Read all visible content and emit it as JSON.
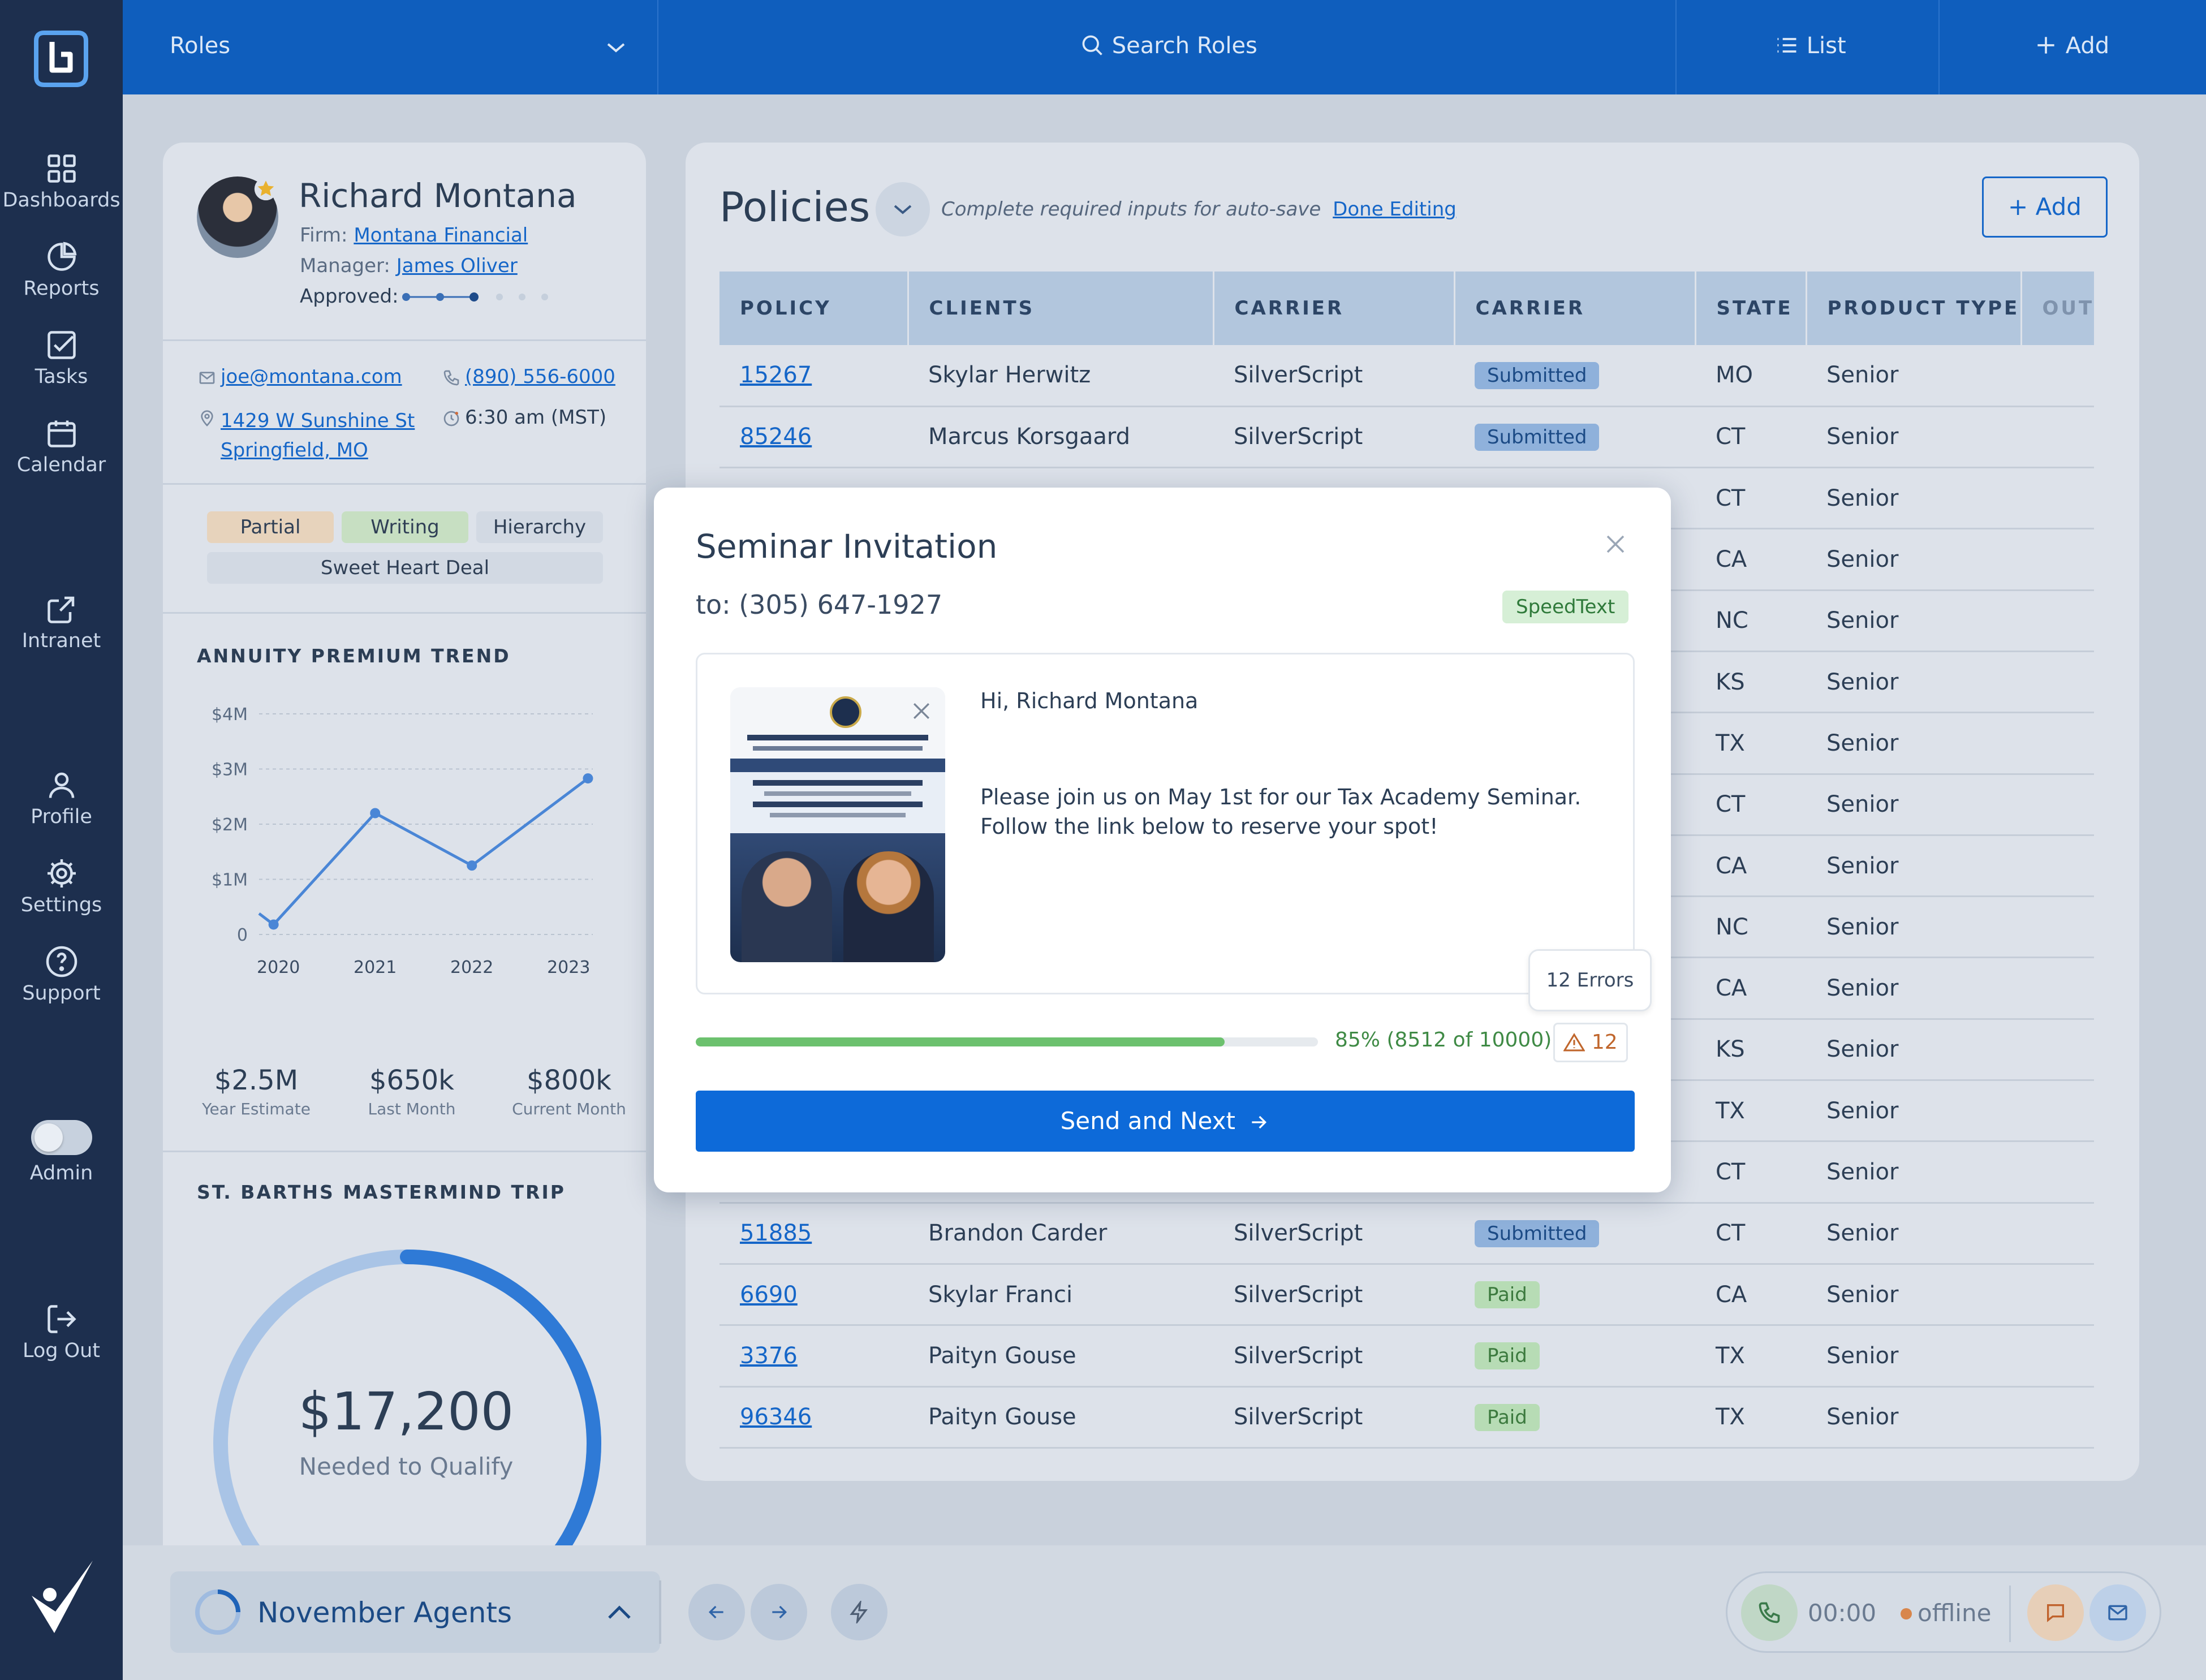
{
  "sidebar": {
    "items": [
      {
        "label": "Dashboards",
        "icon": "grid-icon"
      },
      {
        "label": "Reports",
        "icon": "pie-chart-icon"
      },
      {
        "label": "Tasks",
        "icon": "checkbox-icon"
      },
      {
        "label": "Calendar",
        "icon": "calendar-icon"
      },
      {
        "label": "Intranet",
        "icon": "external-link-icon"
      },
      {
        "label": "Profile",
        "icon": "user-icon"
      },
      {
        "label": "Settings",
        "icon": "gear-icon"
      },
      {
        "label": "Support",
        "icon": "help-circle-icon"
      },
      {
        "label": "Admin",
        "icon": "toggle-icon"
      },
      {
        "label": "Log Out",
        "icon": "logout-icon"
      }
    ]
  },
  "topbar": {
    "roles_label": "Roles",
    "search_label": "Search Roles",
    "list_label": "List",
    "add_label": "Add"
  },
  "profile": {
    "name": "Richard Montana",
    "firm_label": "Firm:",
    "firm": "Montana Financial",
    "manager_label": "Manager:",
    "manager": "James Oliver",
    "approved_label": "Approved:",
    "email": "joe@montana.com",
    "phone": "(890) 556-6000",
    "address_line1": "1429 W Sunshine St",
    "address_line2": "Springfield, MO",
    "local_time": "6:30 am (MST)",
    "tags": [
      "Partial",
      "Writing",
      "Hierarchy",
      "Sweet Heart Deal"
    ]
  },
  "annuity": {
    "title": "ANNUITY PREMIUM TREND",
    "stats": [
      {
        "value": "$2.5M",
        "label": "Year Estimate"
      },
      {
        "value": "$650k",
        "label": "Last Month"
      },
      {
        "value": "$800k",
        "label": "Current Month"
      }
    ]
  },
  "chart_data": {
    "type": "line",
    "x_ticks": [
      "2020",
      "2021",
      "2022",
      "2023"
    ],
    "y_ticks": [
      "0",
      "$1M",
      "$2M",
      "$3M",
      "$4M"
    ],
    "ylim": [
      0,
      4
    ],
    "xlim": [
      2019.8,
      2023.25
    ],
    "points": [
      {
        "x": 2019.8,
        "y": 0.38
      },
      {
        "x": 2019.95,
        "y": 0.18
      },
      {
        "x": 2021.0,
        "y": 2.2
      },
      {
        "x": 2022.0,
        "y": 1.25
      },
      {
        "x": 2023.2,
        "y": 2.83
      }
    ],
    "color": "#4a86d6",
    "grid": true
  },
  "trip": {
    "title": "ST. BARTHS MASTERMIND TRIP",
    "amount": "$17,200",
    "caption": "Needed to Qualify",
    "progress": 0.62
  },
  "policies": {
    "title": "Policies",
    "hint": "Complete required inputs for auto-save",
    "done_editing": "Done Editing",
    "add_label": "Add",
    "columns": [
      "POLICY",
      "CLIENTS",
      "CARRIER",
      "CARRIER",
      "STATE",
      "PRODUCT TYPE",
      "OUTS"
    ],
    "rows": [
      {
        "policy": "15267",
        "client": "Skylar Herwitz",
        "carrier": "SilverScript",
        "status": "Submitted",
        "state": "MO",
        "product": "Senior"
      },
      {
        "policy": "85246",
        "client": "Marcus Korsgaard",
        "carrier": "SilverScript",
        "status": "Submitted",
        "state": "CT",
        "product": "Senior"
      },
      {
        "policy": "",
        "client": "",
        "carrier": "",
        "status": "",
        "state": "CT",
        "product": "Senior"
      },
      {
        "policy": "",
        "client": "",
        "carrier": "",
        "status": "",
        "state": "CA",
        "product": "Senior"
      },
      {
        "policy": "",
        "client": "",
        "carrier": "",
        "status": "",
        "state": "NC",
        "product": "Senior"
      },
      {
        "policy": "",
        "client": "",
        "carrier": "",
        "status": "",
        "state": "KS",
        "product": "Senior"
      },
      {
        "policy": "",
        "client": "",
        "carrier": "",
        "status": "",
        "state": "TX",
        "product": "Senior"
      },
      {
        "policy": "",
        "client": "",
        "carrier": "",
        "status": "",
        "state": "CT",
        "product": "Senior"
      },
      {
        "policy": "",
        "client": "",
        "carrier": "",
        "status": "",
        "state": "CA",
        "product": "Senior"
      },
      {
        "policy": "",
        "client": "",
        "carrier": "",
        "status": "",
        "state": "NC",
        "product": "Senior"
      },
      {
        "policy": "",
        "client": "",
        "carrier": "",
        "status": "",
        "state": "CA",
        "product": "Senior"
      },
      {
        "policy": "",
        "client": "",
        "carrier": "",
        "status": "",
        "state": "KS",
        "product": "Senior"
      },
      {
        "policy": "",
        "client": "",
        "carrier": "",
        "status": "",
        "state": "TX",
        "product": "Senior"
      },
      {
        "policy": "",
        "client": "",
        "carrier": "",
        "status": "",
        "state": "CT",
        "product": "Senior"
      },
      {
        "policy": "51885",
        "client": "Brandon Carder",
        "carrier": "SilverScript",
        "status": "Submitted",
        "state": "CT",
        "product": "Senior"
      },
      {
        "policy": "6690",
        "client": "Skylar Franci",
        "carrier": "SilverScript",
        "status": "Paid",
        "state": "CA",
        "product": "Senior"
      },
      {
        "policy": "3376",
        "client": "Paityn Gouse",
        "carrier": "SilverScript",
        "status": "Paid",
        "state": "TX",
        "product": "Senior"
      },
      {
        "policy": "96346",
        "client": "Paityn Gouse",
        "carrier": "SilverScript",
        "status": "Paid",
        "state": "TX",
        "product": "Senior"
      }
    ]
  },
  "modal": {
    "title": "Seminar Invitation",
    "to": "to: (305) 647-1927",
    "badge": "SpeedText",
    "greeting": "Hi, Richard Montana",
    "body_line1": "Please join us on May 1st for our Tax Academy Seminar.",
    "body_line2": "Follow the link below to reserve your spot!",
    "errors_tooltip": "12 Errors",
    "progress_text": "85% (8512 of 10000)",
    "progress": 0.85,
    "error_count": "12",
    "send_label": "Send and Next"
  },
  "bottombar": {
    "group_label": "November Agents",
    "timer": "00:00",
    "status": "offline"
  }
}
